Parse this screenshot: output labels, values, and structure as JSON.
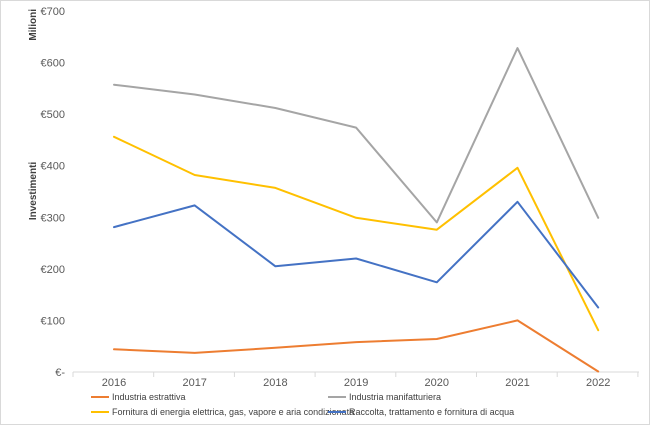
{
  "chart_data": {
    "type": "line",
    "title": "",
    "unit_label": "Milioni",
    "ylabel": "Investimenti",
    "xlabel": "",
    "categories": [
      "2016",
      "2017",
      "2018",
      "2019",
      "2020",
      "2021",
      "2022"
    ],
    "ylim": [
      0,
      700
    ],
    "yticks": [
      0,
      100,
      200,
      300,
      400,
      500,
      600,
      700
    ],
    "ytick_labels": [
      "€-",
      "€100",
      "€200",
      "€300",
      "€400",
      "€500",
      "€600",
      "€700"
    ],
    "grid": false,
    "legend_position": "bottom",
    "series": [
      {
        "name": "Industria estrattiva",
        "color": "#ED7D31",
        "values": [
          44,
          37,
          47,
          58,
          64,
          100,
          1
        ]
      },
      {
        "name": "Industria manifatturiera",
        "color": "#A5A5A5",
        "values": [
          557,
          538,
          512,
          474,
          290,
          628,
          299
        ]
      },
      {
        "name": "Fornitura di energia elettrica, gas, vapore e aria condizionata",
        "color": "#FFC000",
        "values": [
          456,
          382,
          357,
          299,
          276,
          396,
          81
        ]
      },
      {
        "name": "Raccolta, trattamento e fornitura di acqua",
        "color": "#4472C4",
        "values": [
          281,
          323,
          205,
          220,
          174,
          330,
          125
        ]
      }
    ]
  }
}
